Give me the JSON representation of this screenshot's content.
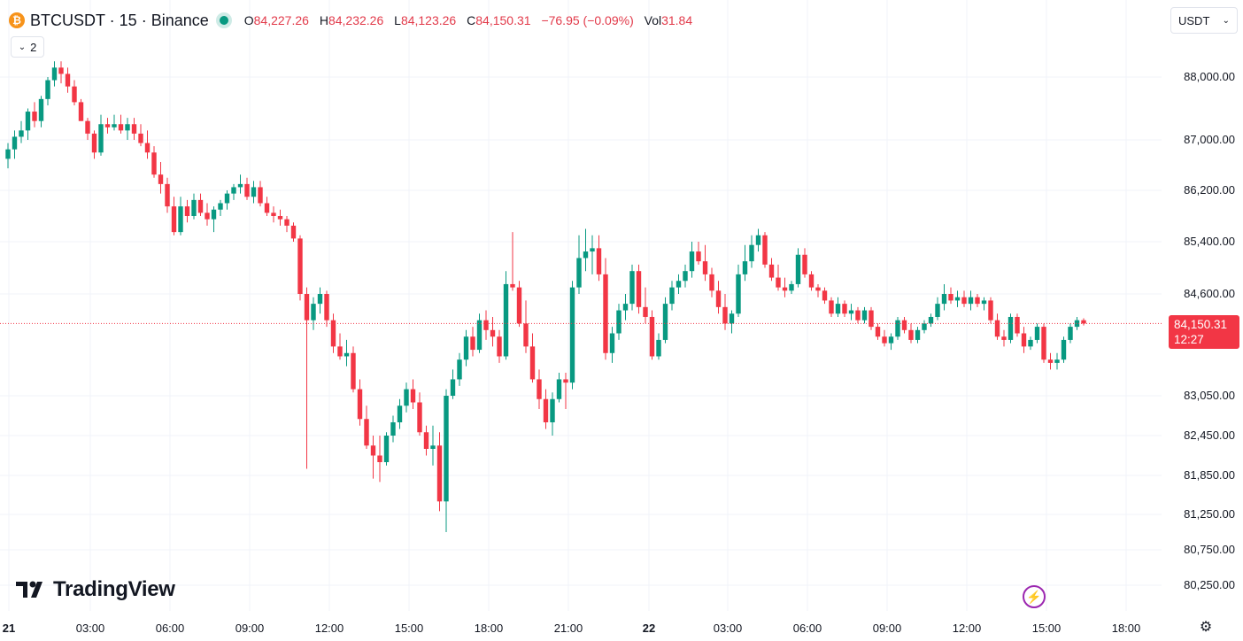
{
  "header": {
    "coin_glyph": "₿",
    "symbol_title": "BTCUSDT · 15 · Binance",
    "ohlc": {
      "o_label": "O",
      "o_value": "84,227.26",
      "h_label": "H",
      "h_value": "84,232.26",
      "l_label": "L",
      "l_value": "84,123.26",
      "c_label": "C",
      "c_value": "84,150.31",
      "change": "−76.95 (−0.09%)",
      "vol_label": "Vol",
      "vol_value": "31.84"
    },
    "indicators_count": "2",
    "currency": "USDT"
  },
  "price_tag": {
    "price": "84,150.31",
    "countdown": "12:27"
  },
  "logo_text": "TradingView",
  "colors": {
    "up": "#089981",
    "down": "#f23645",
    "grid": "#f0f3fa",
    "last_price": "#f23645"
  },
  "icons": {
    "coin": "bitcoin-icon",
    "chevron": "chevron-down-icon",
    "flash": "lightning-icon",
    "settings": "gear-icon",
    "logo": "tradingview-logo-icon"
  },
  "chart_data": {
    "type": "candlestick",
    "interval_minutes": 15,
    "start_label": "21",
    "y_axis_ticks": [
      {
        "value": 88000,
        "label": "88,000.00"
      },
      {
        "value": 87000,
        "label": "87,000.00"
      },
      {
        "value": 86200,
        "label": "86,200.00"
      },
      {
        "value": 85400,
        "label": "85,400.00"
      },
      {
        "value": 84600,
        "label": "84,600.00"
      },
      {
        "value": 83050,
        "label": "83,050.00"
      },
      {
        "value": 82450,
        "label": "82,450.00"
      },
      {
        "value": 81850,
        "label": "81,850.00"
      },
      {
        "value": 81250,
        "label": "81,250.00"
      },
      {
        "value": 80750,
        "label": "80,750.00"
      },
      {
        "value": 80250,
        "label": "80,250.00"
      }
    ],
    "x_axis_ticks": [
      "21",
      "03:00",
      "06:00",
      "09:00",
      "12:00",
      "15:00",
      "18:00",
      "21:00",
      "22",
      "03:00",
      "06:00",
      "09:00",
      "12:00",
      "15:00",
      "18:00"
    ],
    "last_price": 84150.31,
    "candles": [
      [
        86700,
        86950,
        86550,
        86850
      ],
      [
        86850,
        87150,
        86700,
        87050
      ],
      [
        87050,
        87300,
        86950,
        87150
      ],
      [
        87150,
        87500,
        87000,
        87450
      ],
      [
        87450,
        87600,
        87200,
        87300
      ],
      [
        87300,
        87700,
        87200,
        87650
      ],
      [
        87650,
        88000,
        87550,
        87950
      ],
      [
        87950,
        88250,
        87850,
        88150
      ],
      [
        88150,
        88250,
        87900,
        88050
      ],
      [
        88050,
        88150,
        87750,
        87850
      ],
      [
        87850,
        87950,
        87550,
        87600
      ],
      [
        87600,
        87650,
        87300,
        87300
      ],
      [
        87300,
        87350,
        87000,
        87100
      ],
      [
        87100,
        87150,
        86700,
        86800
      ],
      [
        86800,
        87400,
        86750,
        87250
      ],
      [
        87250,
        87350,
        87100,
        87200
      ],
      [
        87200,
        87400,
        87150,
        87250
      ],
      [
        87250,
        87400,
        87100,
        87150
      ],
      [
        87150,
        87350,
        87000,
        87250
      ],
      [
        87250,
        87350,
        87000,
        87100
      ],
      [
        87100,
        87250,
        86900,
        86950
      ],
      [
        86950,
        87150,
        86700,
        86800
      ],
      [
        86800,
        86900,
        86400,
        86450
      ],
      [
        86450,
        86650,
        86150,
        86300
      ],
      [
        86300,
        86400,
        85850,
        85950
      ],
      [
        85950,
        86100,
        85500,
        85550
      ],
      [
        85550,
        86100,
        85500,
        85950
      ],
      [
        85950,
        86050,
        85700,
        85800
      ],
      [
        85800,
        86150,
        85750,
        86050
      ],
      [
        86050,
        86150,
        85800,
        85850
      ],
      [
        85850,
        86000,
        85650,
        85750
      ],
      [
        85750,
        85950,
        85550,
        85900
      ],
      [
        85900,
        86050,
        85800,
        86000
      ],
      [
        86000,
        86200,
        85900,
        86150
      ],
      [
        86150,
        86300,
        86050,
        86250
      ],
      [
        86250,
        86450,
        86150,
        86300
      ],
      [
        86300,
        86400,
        86050,
        86100
      ],
      [
        86100,
        86350,
        86000,
        86250
      ],
      [
        86250,
        86350,
        85950,
        86000
      ],
      [
        86000,
        86100,
        85800,
        85850
      ],
      [
        85850,
        85950,
        85700,
        85800
      ],
      [
        85800,
        85900,
        85650,
        85750
      ],
      [
        85750,
        85800,
        85550,
        85650
      ],
      [
        85650,
        85700,
        85400,
        85450
      ],
      [
        85450,
        85500,
        84500,
        84600
      ],
      [
        84600,
        84700,
        81950,
        84200
      ],
      [
        84200,
        84550,
        84050,
        84450
      ],
      [
        84450,
        84700,
        84300,
        84600
      ],
      [
        84600,
        84650,
        84100,
        84200
      ],
      [
        84200,
        84300,
        83700,
        83800
      ],
      [
        83800,
        84000,
        83600,
        83650
      ],
      [
        83650,
        83900,
        83500,
        83700
      ],
      [
        83700,
        83800,
        83100,
        83150
      ],
      [
        83150,
        83300,
        82600,
        82700
      ],
      [
        82700,
        82900,
        82250,
        82300
      ],
      [
        82300,
        82450,
        81800,
        82150
      ],
      [
        82150,
        82450,
        81750,
        82050
      ],
      [
        82050,
        82500,
        82000,
        82450
      ],
      [
        82450,
        82750,
        82350,
        82650
      ],
      [
        82650,
        83000,
        82550,
        82900
      ],
      [
        82900,
        83250,
        82800,
        83150
      ],
      [
        83150,
        83300,
        82850,
        82950
      ],
      [
        82950,
        83100,
        82450,
        82500
      ],
      [
        82500,
        82600,
        82150,
        82250
      ],
      [
        82250,
        82600,
        82000,
        82300
      ],
      [
        82300,
        82500,
        81300,
        81450
      ],
      [
        81450,
        83150,
        81000,
        83050
      ],
      [
        83050,
        83450,
        83000,
        83300
      ],
      [
        83300,
        83700,
        83200,
        83600
      ],
      [
        83600,
        84050,
        83500,
        83950
      ],
      [
        83950,
        84100,
        83650,
        83750
      ],
      [
        83750,
        84300,
        83700,
        84200
      ],
      [
        84200,
        84350,
        83900,
        84050
      ],
      [
        84050,
        84250,
        83800,
        83950
      ],
      [
        83950,
        84050,
        83550,
        83650
      ],
      [
        83650,
        84950,
        83600,
        84750
      ],
      [
        84750,
        85550,
        84650,
        84700
      ],
      [
        84700,
        84800,
        84100,
        84150
      ],
      [
        84150,
        84500,
        83700,
        83800
      ],
      [
        83800,
        84000,
        83250,
        83300
      ],
      [
        83300,
        83450,
        82850,
        83000
      ],
      [
        83000,
        83150,
        82550,
        82650
      ],
      [
        82650,
        83100,
        82450,
        83000
      ],
      [
        83000,
        83400,
        82950,
        83300
      ],
      [
        83300,
        83400,
        82850,
        83250
      ],
      [
        83250,
        84800,
        83150,
        84700
      ],
      [
        84700,
        85500,
        84600,
        85150
      ],
      [
        85150,
        85600,
        84950,
        85250
      ],
      [
        85250,
        85500,
        84900,
        85300
      ],
      [
        85300,
        85500,
        84800,
        84900
      ],
      [
        84900,
        85150,
        83600,
        83700
      ],
      [
        83700,
        84100,
        83550,
        84000
      ],
      [
        84000,
        84450,
        83900,
        84350
      ],
      [
        84350,
        84600,
        84200,
        84450
      ],
      [
        84450,
        85050,
        84350,
        84950
      ],
      [
        84950,
        85050,
        84300,
        84400
      ],
      [
        84400,
        84700,
        84150,
        84250
      ],
      [
        84250,
        84350,
        83600,
        83650
      ],
      [
        83650,
        84000,
        83600,
        83900
      ],
      [
        83900,
        84550,
        83850,
        84450
      ],
      [
        84450,
        84800,
        84350,
        84700
      ],
      [
        84700,
        84900,
        84600,
        84800
      ],
      [
        84800,
        85050,
        84700,
        84950
      ],
      [
        84950,
        85400,
        84850,
        85250
      ],
      [
        85250,
        85400,
        85050,
        85100
      ],
      [
        85100,
        85350,
        84800,
        84900
      ],
      [
        84900,
        85000,
        84550,
        84650
      ],
      [
        84650,
        84800,
        84300,
        84400
      ],
      [
        84400,
        84600,
        84050,
        84150
      ],
      [
        84150,
        84350,
        84000,
        84300
      ],
      [
        84300,
        85050,
        84250,
        84900
      ],
      [
        84900,
        85350,
        84800,
        85100
      ],
      [
        85100,
        85500,
        85000,
        85350
      ],
      [
        85350,
        85600,
        85250,
        85500
      ],
      [
        85500,
        85550,
        85000,
        85050
      ],
      [
        85050,
        85150,
        84800,
        84850
      ],
      [
        84850,
        85050,
        84650,
        84700
      ],
      [
        84700,
        84850,
        84550,
        84650
      ],
      [
        84650,
        84800,
        84600,
        84750
      ],
      [
        84750,
        85300,
        84700,
        85200
      ],
      [
        85200,
        85300,
        84850,
        84900
      ],
      [
        84900,
        84950,
        84650,
        84700
      ],
      [
        84700,
        84750,
        84550,
        84650
      ],
      [
        84650,
        84700,
        84450,
        84500
      ],
      [
        84500,
        84550,
        84250,
        84300
      ],
      [
        84300,
        84550,
        84250,
        84450
      ],
      [
        84450,
        84500,
        84250,
        84300
      ],
      [
        84300,
        84450,
        84200,
        84350
      ],
      [
        84350,
        84400,
        84150,
        84200
      ],
      [
        84200,
        84400,
        84150,
        84350
      ],
      [
        84350,
        84400,
        84050,
        84100
      ],
      [
        84100,
        84150,
        83900,
        83950
      ],
      [
        83950,
        84050,
        83800,
        83850
      ],
      [
        83850,
        84000,
        83750,
        83950
      ],
      [
        83950,
        84250,
        83900,
        84200
      ],
      [
        84200,
        84250,
        84000,
        84050
      ],
      [
        84050,
        84150,
        83850,
        83900
      ],
      [
        83900,
        84100,
        83850,
        84050
      ],
      [
        84050,
        84200,
        84000,
        84150
      ],
      [
        84150,
        84300,
        84100,
        84250
      ],
      [
        84250,
        84550,
        84200,
        84450
      ],
      [
        84450,
        84750,
        84350,
        84600
      ],
      [
        84600,
        84700,
        84450,
        84500
      ],
      [
        84500,
        84650,
        84400,
        84550
      ],
      [
        84550,
        84650,
        84400,
        84450
      ],
      [
        84450,
        84650,
        84350,
        84550
      ],
      [
        84550,
        84600,
        84400,
        84450
      ],
      [
        84450,
        84550,
        84350,
        84500
      ],
      [
        84500,
        84550,
        84150,
        84200
      ],
      [
        84200,
        84300,
        83900,
        83950
      ],
      [
        83950,
        84050,
        83800,
        83900
      ],
      [
        83900,
        84300,
        83850,
        84250
      ],
      [
        84250,
        84300,
        83950,
        84000
      ],
      [
        84000,
        84100,
        83700,
        83800
      ],
      [
        83800,
        83950,
        83750,
        83900
      ],
      [
        83900,
        84150,
        83850,
        84100
      ],
      [
        84100,
        84150,
        83550,
        83600
      ],
      [
        83600,
        83700,
        83450,
        83550
      ],
      [
        83550,
        83700,
        83450,
        83600
      ],
      [
        83600,
        83950,
        83550,
        83900
      ],
      [
        83900,
        84150,
        83850,
        84100
      ],
      [
        84100,
        84250,
        84050,
        84200
      ],
      [
        84200,
        84230,
        84120,
        84150
      ]
    ]
  }
}
